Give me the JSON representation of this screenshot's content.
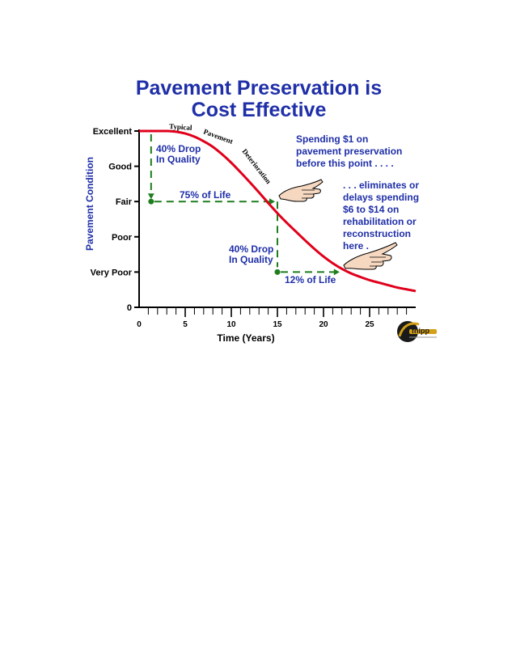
{
  "colors": {
    "title": "#1f2fa8",
    "curve": "#e0001b",
    "annotation_text": "#1f2fa8",
    "guide": "#1e7d1e",
    "axis": "#000000",
    "logo_gold": "#d4a017"
  },
  "chart_data": {
    "type": "line",
    "title_lines": [
      "Pavement Preservation is",
      "Cost Effective"
    ],
    "xlabel": "Time (Years)",
    "ylabel": "Pavement Condition",
    "xlim": [
      0,
      30
    ],
    "x_ticks": [
      0,
      5,
      10,
      15,
      20,
      25
    ],
    "y_ticks": [
      {
        "label": "Excellent",
        "value": 5
      },
      {
        "label": "Good",
        "value": 4
      },
      {
        "label": "Fair",
        "value": 3
      },
      {
        "label": "Poor",
        "value": 2
      },
      {
        "label": "Very Poor",
        "value": 1
      },
      {
        "label": "0",
        "value": 0
      }
    ],
    "grid": false,
    "series": [
      {
        "name": "Typical Pavement Deterioration",
        "x": [
          0,
          1,
          2,
          3,
          4,
          5,
          6,
          7,
          8,
          9,
          10,
          11,
          12,
          13,
          14,
          15,
          16,
          17,
          18,
          19,
          20,
          21,
          22,
          23,
          24,
          25,
          26,
          27,
          28,
          29,
          30
        ],
        "y": [
          5.0,
          5.0,
          5.0,
          5.0,
          4.98,
          4.93,
          4.84,
          4.71,
          4.55,
          4.34,
          4.1,
          3.83,
          3.55,
          3.26,
          2.96,
          2.67,
          2.4,
          2.15,
          1.9,
          1.66,
          1.44,
          1.25,
          1.09,
          0.96,
          0.86,
          0.77,
          0.7,
          0.63,
          0.56,
          0.51,
          0.46
        ]
      }
    ],
    "curve_label_words": [
      "Typical",
      "Pavement",
      "Deterioration"
    ],
    "markers": [
      {
        "x": 1.3,
        "y": 3.0
      },
      {
        "x": 15.0,
        "y": 1.0
      }
    ],
    "annotations": {
      "drop1": [
        "40% Drop",
        "In Quality"
      ],
      "life1": "75% of Life",
      "drop2": [
        "40% Drop",
        "In Quality"
      ],
      "life2": "12% of Life",
      "spend": [
        "Spending $1 on",
        "pavement preservation",
        "before this point . . . ."
      ],
      "eliminates": [
        ". . . eliminates or",
        "delays spending",
        "$6 to $14 on",
        "rehabilitation or",
        "reconstruction",
        "here ."
      ]
    }
  },
  "logo": {
    "text": "fnipp"
  }
}
